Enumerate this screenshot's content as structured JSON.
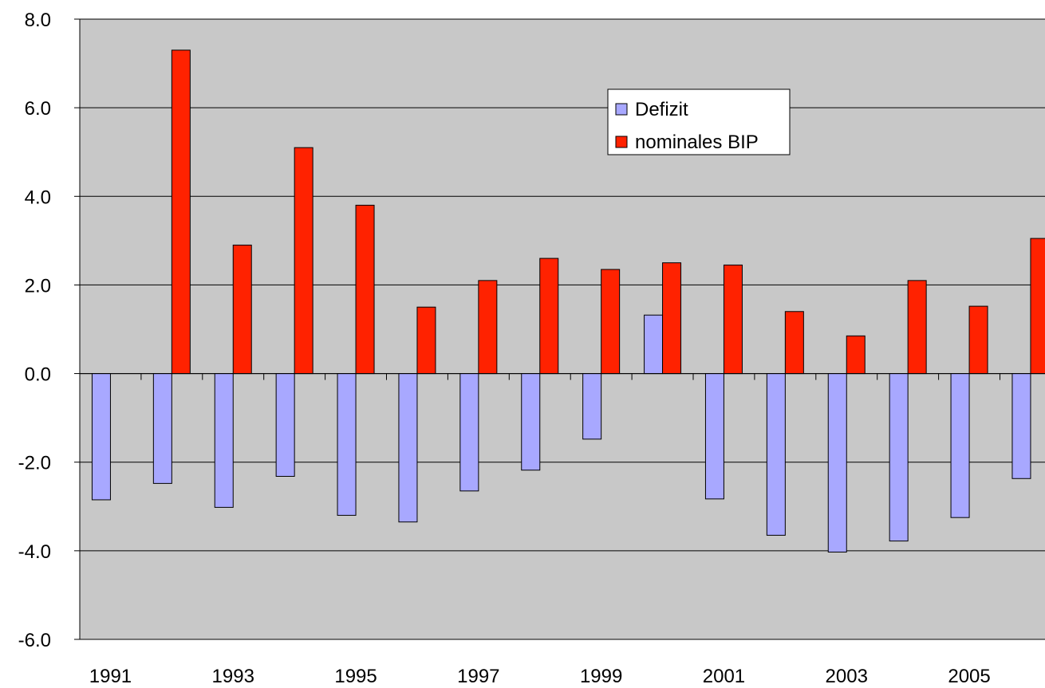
{
  "chart_data": {
    "type": "bar",
    "categories": [
      "1991",
      null,
      "1993",
      null,
      "1995",
      null,
      "1997",
      null,
      "1999",
      null,
      "2001",
      null,
      "2003",
      null,
      "2005",
      null
    ],
    "series": [
      {
        "name": "Defizit",
        "color": "#a8a8ff",
        "values": [
          -2.85,
          -2.48,
          -3.02,
          -2.32,
          -3.2,
          -3.35,
          -2.65,
          -2.18,
          -1.48,
          1.32,
          -2.83,
          -3.65,
          -4.03,
          -3.78,
          -3.25,
          -2.37
        ]
      },
      {
        "name": "nominales BIP",
        "color": "#ff2200",
        "values": [
          null,
          7.3,
          2.9,
          5.1,
          3.8,
          1.5,
          2.1,
          2.6,
          2.35,
          2.5,
          2.45,
          1.4,
          0.85,
          2.1,
          1.52,
          3.05
        ]
      }
    ],
    "ylim": [
      -6,
      8
    ],
    "yticks": [
      {
        "value": -6,
        "label": "-6.0"
      },
      {
        "value": -4,
        "label": "-4.0"
      },
      {
        "value": -2,
        "label": "-2.0"
      },
      {
        "value": 0,
        "label": "0.0"
      },
      {
        "value": 2,
        "label": "2.0"
      },
      {
        "value": 4,
        "label": "4.0"
      },
      {
        "value": 6,
        "label": "6.0"
      },
      {
        "value": 8,
        "label": "8.0"
      }
    ],
    "grid": true
  }
}
